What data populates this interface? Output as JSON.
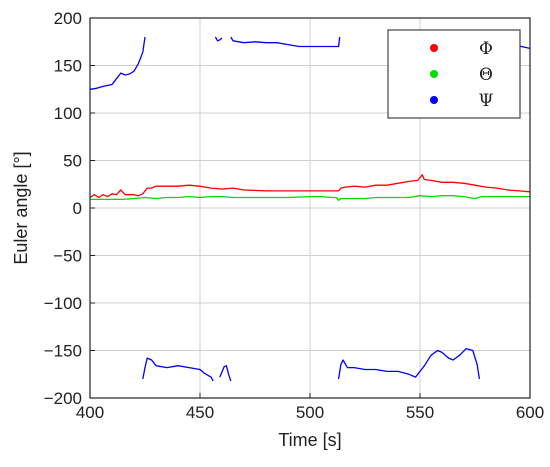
{
  "chart_data": {
    "type": "line",
    "title": "",
    "xlabel": "Time [s]",
    "ylabel": "Euler angle [°]",
    "xlim": [
      400,
      600
    ],
    "ylim": [
      -200,
      200
    ],
    "x_ticks": [
      400,
      450,
      500,
      550,
      600
    ],
    "y_ticks": [
      200,
      150,
      100,
      50,
      0,
      -50,
      -100,
      -150,
      -200
    ],
    "grid": true,
    "legend": {
      "position": "top-right",
      "marker": "dot"
    },
    "series": [
      {
        "name": "Φ",
        "color": "#ff0000",
        "segments": [
          [
            [
              400,
              11
            ],
            [
              402,
              14
            ],
            [
              404,
              11
            ],
            [
              406,
              14
            ],
            [
              408,
              12
            ],
            [
              410,
              15
            ],
            [
              412,
              14
            ],
            [
              414,
              19
            ],
            [
              416,
              14
            ],
            [
              418,
              14
            ],
            [
              420,
              14
            ],
            [
              422,
              13
            ],
            [
              424,
              15
            ],
            [
              426,
              21
            ],
            [
              428,
              21
            ],
            [
              430,
              23
            ],
            [
              435,
              23
            ],
            [
              440,
              23
            ],
            [
              445,
              24
            ],
            [
              450,
              23
            ],
            [
              455,
              21
            ],
            [
              460,
              20
            ],
            [
              465,
              21
            ],
            [
              470,
              19
            ],
            [
              480,
              18
            ],
            [
              490,
              18
            ],
            [
              500,
              18
            ],
            [
              505,
              18
            ],
            [
              510,
              18
            ],
            [
              513,
              18
            ],
            [
              514,
              21
            ],
            [
              516,
              22
            ],
            [
              520,
              23
            ],
            [
              525,
              22
            ],
            [
              530,
              24
            ],
            [
              535,
              24
            ],
            [
              540,
              26
            ],
            [
              545,
              28
            ],
            [
              549,
              29
            ],
            [
              550,
              32
            ],
            [
              551,
              35
            ],
            [
              552,
              30
            ],
            [
              555,
              29
            ],
            [
              560,
              27
            ],
            [
              565,
              27
            ],
            [
              570,
              26
            ],
            [
              575,
              24
            ],
            [
              580,
              22
            ],
            [
              585,
              21
            ],
            [
              590,
              19
            ],
            [
              595,
              18
            ],
            [
              600,
              17
            ]
          ]
        ]
      },
      {
        "name": "Θ",
        "color": "#00dd00",
        "segments": [
          [
            [
              400,
              9
            ],
            [
              405,
              9
            ],
            [
              410,
              9
            ],
            [
              415,
              9
            ],
            [
              420,
              10
            ],
            [
              425,
              11
            ],
            [
              430,
              10
            ],
            [
              435,
              11
            ],
            [
              440,
              11
            ],
            [
              445,
              12
            ],
            [
              450,
              11
            ],
            [
              455,
              12
            ],
            [
              460,
              12
            ],
            [
              465,
              11
            ],
            [
              470,
              11
            ],
            [
              480,
              11
            ],
            [
              490,
              11
            ],
            [
              500,
              12
            ],
            [
              505,
              12
            ],
            [
              510,
              11
            ],
            [
              512,
              11
            ],
            [
              513,
              8
            ],
            [
              514,
              10
            ],
            [
              520,
              10
            ],
            [
              525,
              10
            ],
            [
              530,
              11
            ],
            [
              540,
              11
            ],
            [
              545,
              11
            ],
            [
              550,
              13
            ],
            [
              555,
              12
            ],
            [
              560,
              13
            ],
            [
              565,
              13
            ],
            [
              570,
              12
            ],
            [
              575,
              10
            ],
            [
              578,
              12
            ],
            [
              585,
              12
            ],
            [
              590,
              12
            ],
            [
              595,
              12
            ],
            [
              600,
              12
            ]
          ]
        ]
      },
      {
        "name": "Ψ",
        "color": "#0000ff",
        "segments": [
          [
            [
              400,
              125
            ],
            [
              403,
              126
            ],
            [
              406,
              128
            ],
            [
              410,
              130
            ],
            [
              412,
              136
            ],
            [
              414,
              142
            ],
            [
              416,
              140
            ],
            [
              418,
              141
            ],
            [
              420,
              144
            ],
            [
              422,
              152
            ],
            [
              424,
              164
            ],
            [
              425,
              180
            ]
          ],
          [
            [
              457,
              180
            ],
            [
              458,
              176
            ],
            [
              459,
              177
            ],
            [
              460,
              179
            ]
          ],
          [
            [
              464,
              180
            ],
            [
              465,
              176
            ],
            [
              470,
              174
            ],
            [
              475,
              175
            ],
            [
              480,
              174
            ],
            [
              485,
              174
            ],
            [
              490,
              172
            ],
            [
              495,
              170
            ],
            [
              500,
              170
            ],
            [
              505,
              170
            ],
            [
              510,
              170
            ],
            [
              513,
              170
            ],
            [
              513.5,
              180
            ]
          ],
          [
            [
              595,
              171
            ],
            [
              596,
              170
            ],
            [
              600,
              168
            ]
          ],
          [
            [
              424,
              -180
            ],
            [
              425,
              -168
            ],
            [
              426,
              -158
            ],
            [
              428,
              -160
            ],
            [
              430,
              -166
            ],
            [
              435,
              -168
            ],
            [
              440,
              -166
            ],
            [
              445,
              -168
            ],
            [
              450,
              -170
            ],
            [
              452,
              -174
            ],
            [
              455,
              -178
            ],
            [
              456,
              -182
            ]
          ],
          [
            [
              459,
              -178
            ],
            [
              461,
              -167
            ],
            [
              462,
              -166
            ],
            [
              463,
              -175
            ],
            [
              464,
              -182
            ]
          ],
          [
            [
              513,
              -180
            ],
            [
              514,
              -165
            ],
            [
              515,
              -160
            ],
            [
              517,
              -168
            ],
            [
              520,
              -168
            ],
            [
              525,
              -170
            ],
            [
              530,
              -170
            ],
            [
              535,
              -172
            ],
            [
              540,
              -172
            ],
            [
              545,
              -175
            ],
            [
              548,
              -178
            ],
            [
              550,
              -172
            ],
            [
              552,
              -166
            ],
            [
              555,
              -155
            ],
            [
              558,
              -150
            ],
            [
              560,
              -152
            ],
            [
              563,
              -158
            ],
            [
              565,
              -160
            ],
            [
              568,
              -155
            ],
            [
              571,
              -148
            ],
            [
              574,
              -150
            ],
            [
              576,
              -165
            ],
            [
              577,
              -180
            ]
          ]
        ]
      }
    ]
  }
}
